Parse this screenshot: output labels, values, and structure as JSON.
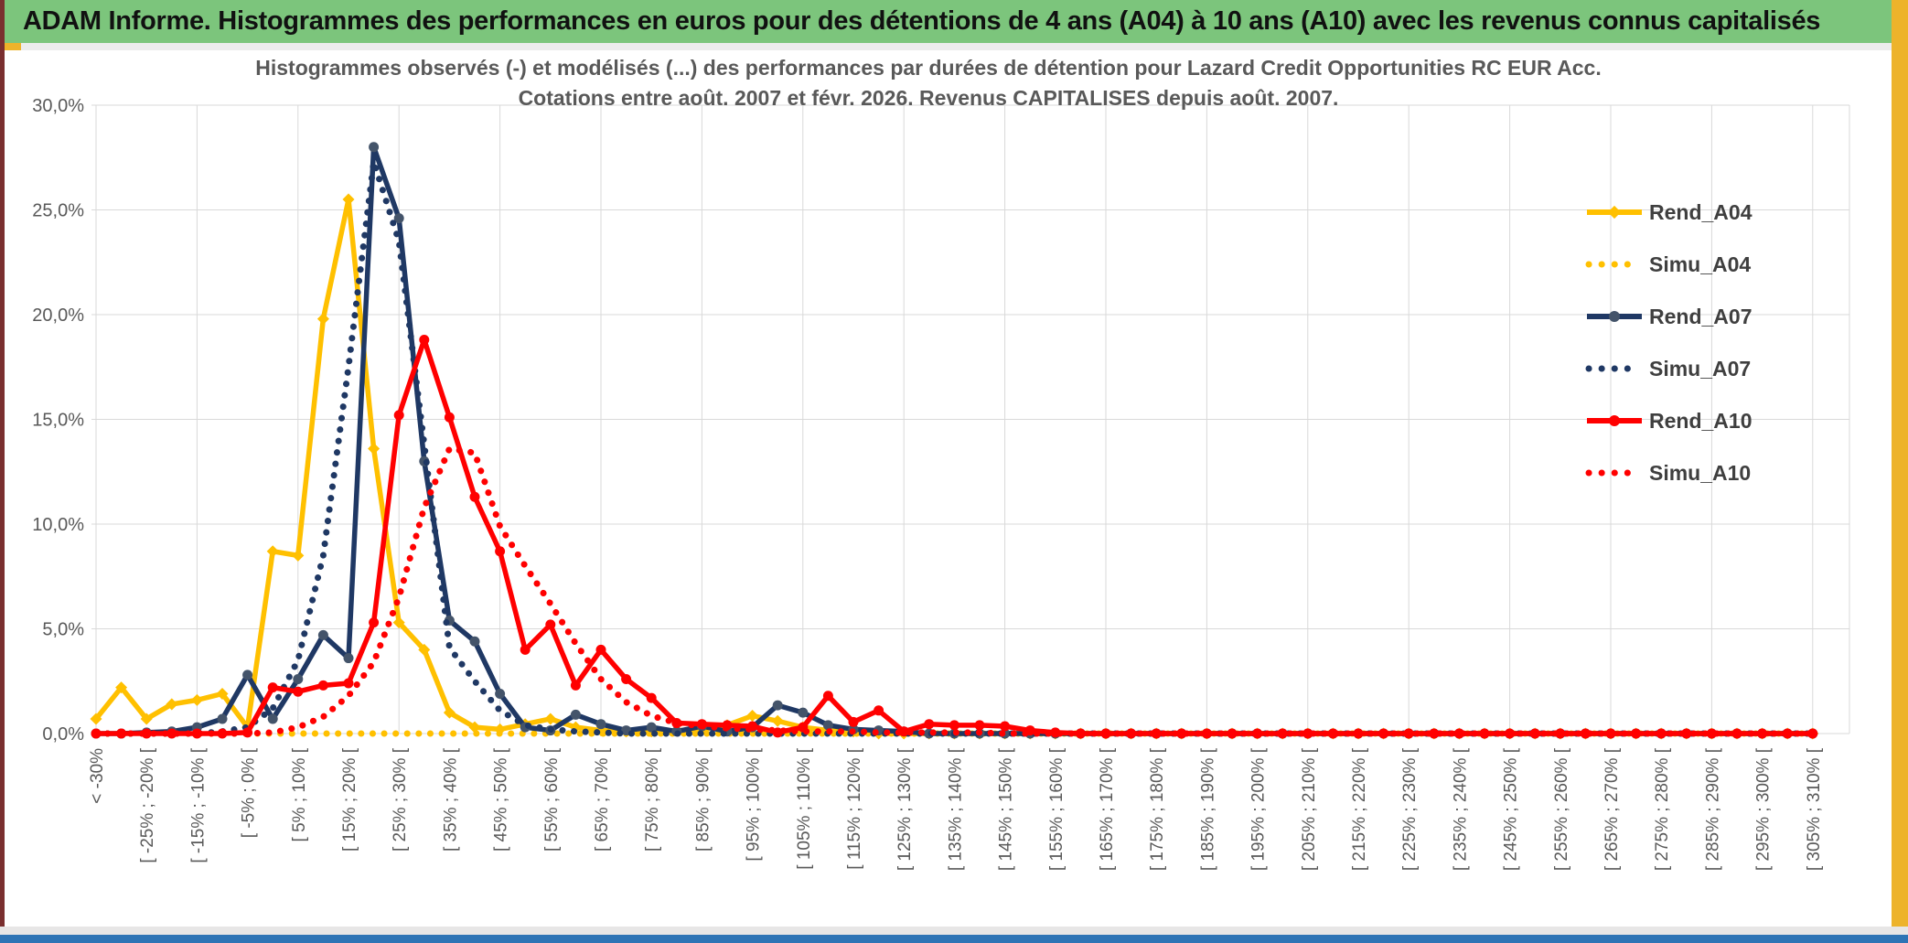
{
  "banner": {
    "title": "ADAM Informe. Histogrammes des performances en euros pour des détentions de 4 ans (A04) à 10 ans (A10) avec les revenus connus capitalisés"
  },
  "chart": {
    "title_line1": "Histogrammes observés (-) et modélisés (...) des performances par durées de détention pour Lazard Credit Opportunities RC EUR Acc.",
    "title_line2": "Cotations entre août. 2007 et févr. 2026. Revenus CAPITALISES depuis août. 2007.",
    "y_axis_labels": [
      "0,0%",
      "5,0%",
      "10,0%",
      "15,0%",
      "20,0%",
      "25,0%",
      "30,0%"
    ]
  },
  "colors": {
    "banner_green": "#7CC57C",
    "frame_maroon": "#7A2F2F",
    "frame_gold": "#EDB32B",
    "bottom_blue": "#2E74B5",
    "gridline_gray": "#D9D9D9",
    "axis_text_gray": "#595959",
    "series_gold": "#FFC000",
    "series_navy": "#1F3864",
    "series_navy_marker": "#44546A",
    "series_red": "#FF0000"
  },
  "chart_data": {
    "type": "line",
    "title": "Histogrammes observés (-) et modélisés (...) des performances par durées de détention pour Lazard Credit Opportunities RC EUR Acc. Cotations entre août. 2007 et févr. 2026. Revenus CAPITALISES depuis août. 2007.",
    "ylim": [
      0,
      30
    ],
    "grid": {
      "horizontal_step_pct": 5,
      "vertical_step_bins": 4,
      "visible": true
    },
    "legend_position": "right-inside",
    "x_tick_labels_shown": [
      "< -30%",
      "[ -25% ; -20% [",
      "[ -15% ; -10% [",
      "[ -5% ; 0% [",
      "[ 5% ; 10% [",
      "[ 15% ; 20% [",
      "[ 25% ; 30% [",
      "[ 35% ; 40% [",
      "[ 45% ; 50% [",
      "[ 55% ; 60% [",
      "[ 65% ; 70% [",
      "[ 75% ; 80% [",
      "[ 85% ; 90% [",
      "[ 95% ; 100% [",
      "[ 105% ; 110% [",
      "[ 115% ; 120% [",
      "[ 125% ; 130% [",
      "[ 135% ; 140% [",
      "[ 145% ; 150% [",
      "[ 155% ; 160% [",
      "[ 165% ; 170% [",
      "[ 175% ; 180% [",
      "[ 185% ; 190% [",
      "[ 195% ; 200% [",
      "[ 205% ; 210% [",
      "[ 215% ; 220% [",
      "[ 225% ; 230% [",
      "[ 235% ; 240% [",
      "[ 245% ; 250% [",
      "[ 255% ; 260% [",
      "[ 265% ; 270% [",
      "[ 275% ; 280% [",
      "[ 285% ; 290% [",
      "[ 295% ; 300% [",
      "[ 305% ; 310% ["
    ],
    "bins": [
      "< -30%",
      "[ -30% ; -25% [",
      "[ -25% ; -20% [",
      "[ -20% ; -15% [",
      "[ -15% ; -10% [",
      "[ -10% ; -5% [",
      "[ -5% ; 0% [",
      "[ 0% ; 5% [",
      "[ 5% ; 10% [",
      "[ 10% ; 15% [",
      "[ 15% ; 20% [",
      "[ 20% ; 25% [",
      "[ 25% ; 30% [",
      "[ 30% ; 35% [",
      "[ 35% ; 40% [",
      "[ 40% ; 45% [",
      "[ 45% ; 50% [",
      "[ 50% ; 55% [",
      "[ 55% ; 60% [",
      "[ 60% ; 65% [",
      "[ 65% ; 70% [",
      "[ 70% ; 75% [",
      "[ 75% ; 80% [",
      "[ 80% ; 85% [",
      "[ 85% ; 90% [",
      "[ 90% ; 95% [",
      "[ 95% ; 100% [",
      "[ 100% ; 105% [",
      "[ 105% ; 110% [",
      "[ 110% ; 115% [",
      "[ 115% ; 120% [",
      "[ 120% ; 125% [",
      "[ 125% ; 130% [",
      "[ 130% ; 135% [",
      "[ 135% ; 140% [",
      "[ 140% ; 145% [",
      "[ 145% ; 150% [",
      "[ 150% ; 155% [",
      "[ 155% ; 160% [",
      "[ 160% ; 165% [",
      "[ 165% ; 170% [",
      "[ 170% ; 175% [",
      "[ 175% ; 180% [",
      "[ 180% ; 185% [",
      "[ 185% ; 190% [",
      "[ 190% ; 195% [",
      "[ 195% ; 200% [",
      "[ 200% ; 205% [",
      "[ 205% ; 210% [",
      "[ 210% ; 215% [",
      "[ 215% ; 220% [",
      "[ 220% ; 225% [",
      "[ 225% ; 230% [",
      "[ 230% ; 235% [",
      "[ 235% ; 240% [",
      "[ 240% ; 245% [",
      "[ 245% ; 250% [",
      "[ 250% ; 255% [",
      "[ 255% ; 260% [",
      "[ 260% ; 265% [",
      "[ 265% ; 270% [",
      "[ 270% ; 275% [",
      "[ 275% ; 280% [",
      "[ 280% ; 285% [",
      "[ 285% ; 290% [",
      "[ 290% ; 295% [",
      "[ 295% ; 300% [",
      "[ 300% ; 305% [",
      "[ 305% ; 310% ["
    ],
    "series": [
      {
        "name": "Rend_A04",
        "style": "solid",
        "marker": "diamond",
        "color": "#FFC000",
        "marker_color": "#FFC000",
        "values": [
          0.7,
          2.2,
          0.7,
          1.4,
          1.6,
          1.9,
          0.3,
          8.7,
          8.5,
          19.8,
          25.5,
          13.6,
          5.3,
          4.0,
          1.0,
          0.3,
          0.2,
          0.45,
          0.7,
          0.3,
          0.15,
          0.1,
          0.1,
          0.15,
          0.2,
          0.4,
          0.85,
          0.6,
          0.3,
          0.15,
          0.1,
          0,
          0,
          0,
          0,
          0,
          0,
          0,
          0,
          0,
          0,
          0,
          0,
          0,
          0,
          0,
          0,
          0,
          0,
          0,
          0,
          0,
          0,
          0,
          0,
          0,
          0,
          0,
          0,
          0,
          0,
          0,
          0,
          0,
          0,
          0,
          0,
          0,
          0
        ]
      },
      {
        "name": "Simu_A04",
        "style": "dotted",
        "marker": "none",
        "color": "#FFC000",
        "marker_color": "#FFC000",
        "values": [
          0,
          0,
          0,
          0,
          0,
          0,
          0,
          0,
          0,
          0,
          0,
          0,
          0,
          0,
          0,
          0,
          0,
          0,
          0,
          0,
          0,
          0,
          0,
          0,
          0,
          0,
          0,
          0,
          0,
          0,
          0,
          0,
          0,
          0,
          0,
          0,
          0,
          0,
          0,
          0,
          0,
          0,
          0,
          0,
          0,
          0,
          0,
          0,
          0,
          0,
          0,
          0,
          0,
          0,
          0,
          0,
          0,
          0,
          0,
          0,
          0,
          0,
          0,
          0,
          0,
          0,
          0,
          0,
          0
        ]
      },
      {
        "name": "Rend_A07",
        "style": "solid",
        "marker": "circle",
        "color": "#1F3864",
        "marker_color": "#44546A",
        "values": [
          0,
          0,
          0.05,
          0.1,
          0.3,
          0.7,
          2.8,
          0.7,
          2.6,
          4.7,
          3.6,
          28.0,
          24.6,
          13.0,
          5.4,
          4.4,
          1.9,
          0.3,
          0.15,
          0.9,
          0.45,
          0.15,
          0.3,
          0.1,
          0.35,
          0.1,
          0.3,
          1.35,
          1.0,
          0.4,
          0.2,
          0.15,
          0.1,
          0,
          0,
          0,
          0,
          0,
          0,
          0,
          0,
          0,
          0,
          0,
          0,
          0,
          0,
          0,
          0,
          0,
          0,
          0,
          0,
          0,
          0,
          0,
          0,
          0,
          0,
          0,
          0,
          0,
          0,
          0,
          0,
          0,
          0,
          0,
          0
        ]
      },
      {
        "name": "Simu_A07",
        "style": "dotted",
        "marker": "none",
        "color": "#1F3864",
        "marker_color": "#1F3864",
        "values": [
          0,
          0,
          0,
          0,
          0,
          0.1,
          0.3,
          1.2,
          3.5,
          8.5,
          17.5,
          27.3,
          23.5,
          13.8,
          4.1,
          2.5,
          1.1,
          0.4,
          0.2,
          0.1,
          0.05,
          0,
          0,
          0,
          0,
          0,
          0,
          0,
          0,
          0,
          0,
          0,
          0,
          0,
          0,
          0,
          0,
          0,
          0,
          0,
          0,
          0,
          0,
          0,
          0,
          0,
          0,
          0,
          0,
          0,
          0,
          0,
          0,
          0,
          0,
          0,
          0,
          0,
          0,
          0,
          0,
          0,
          0,
          0,
          0,
          0,
          0,
          0,
          0
        ]
      },
      {
        "name": "Rend_A10",
        "style": "solid",
        "marker": "circle",
        "color": "#FF0000",
        "marker_color": "#FF0000",
        "values": [
          0,
          0,
          0,
          0,
          0,
          0,
          0.05,
          2.2,
          2.0,
          2.3,
          2.4,
          5.3,
          15.2,
          18.8,
          15.1,
          11.3,
          8.7,
          4.0,
          5.2,
          2.3,
          4.0,
          2.6,
          1.7,
          0.5,
          0.45,
          0.4,
          0.35,
          0.05,
          0.3,
          1.8,
          0.55,
          1.1,
          0.1,
          0.45,
          0.4,
          0.4,
          0.35,
          0.15,
          0.05,
          0,
          0,
          0,
          0,
          0,
          0,
          0,
          0,
          0,
          0,
          0,
          0,
          0,
          0,
          0,
          0,
          0,
          0,
          0,
          0,
          0,
          0,
          0,
          0,
          0,
          0,
          0,
          0,
          0,
          0
        ]
      },
      {
        "name": "Simu_A10",
        "style": "dotted",
        "marker": "none",
        "color": "#FF0000",
        "marker_color": "#FF0000",
        "values": [
          0,
          0,
          0,
          0,
          0,
          0,
          0,
          0.05,
          0.3,
          0.8,
          1.8,
          3.4,
          6.5,
          10.8,
          13.6,
          13.4,
          9.9,
          8.0,
          6.2,
          4.3,
          2.6,
          1.5,
          0.85,
          0.5,
          0.35,
          0.25,
          0.2,
          0.15,
          0.1,
          0.1,
          0.1,
          0.05,
          0.05,
          0.05,
          0.05,
          0.05,
          0,
          0,
          0,
          0,
          0,
          0,
          0,
          0,
          0,
          0,
          0,
          0,
          0,
          0,
          0,
          0,
          0,
          0,
          0,
          0,
          0,
          0,
          0,
          0,
          0,
          0,
          0,
          0,
          0,
          0,
          0,
          0,
          0
        ]
      }
    ]
  }
}
